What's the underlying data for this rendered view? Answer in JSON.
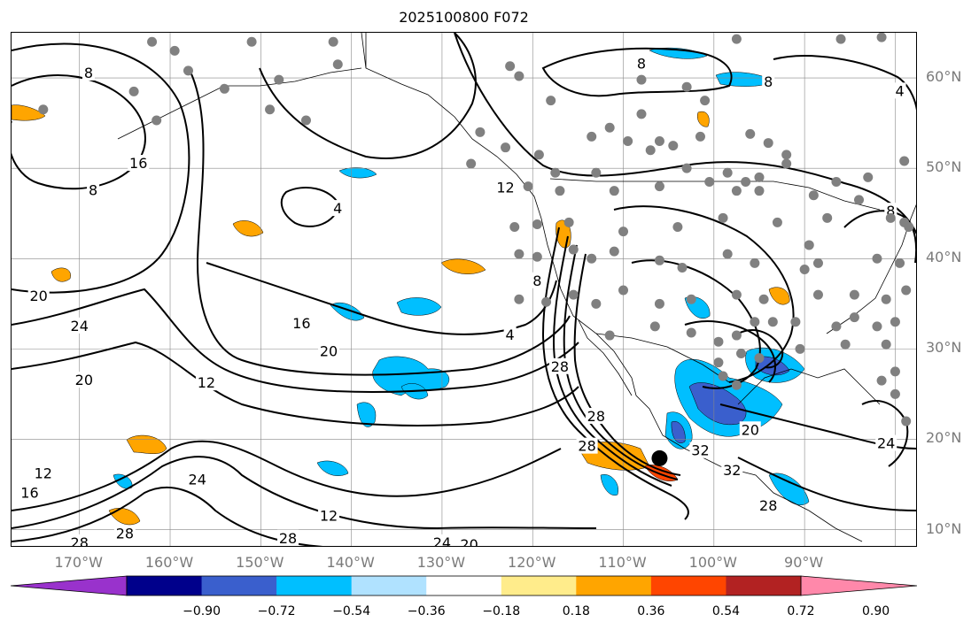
{
  "title": "2025100800 F072",
  "lat_labels": [
    {
      "text": "60°N",
      "lat": 60
    },
    {
      "text": "50°N",
      "lat": 50
    },
    {
      "text": "40°N",
      "lat": 40
    },
    {
      "text": "30°N",
      "lat": 30
    },
    {
      "text": "20°N",
      "lat": 20
    },
    {
      "text": "10°N",
      "lat": 10
    }
  ],
  "lon_labels": [
    {
      "text": "170°W",
      "lon": -170
    },
    {
      "text": "160°W",
      "lon": -160
    },
    {
      "text": "150°W",
      "lon": -150
    },
    {
      "text": "140°W",
      "lon": -140
    },
    {
      "text": "130°W",
      "lon": -130
    },
    {
      "text": "120°W",
      "lon": -120
    },
    {
      "text": "110°W",
      "lon": -110
    },
    {
      "text": "100°W",
      "lon": -100
    },
    {
      "text": "90°W",
      "lon": -90
    }
  ],
  "map_extent": {
    "lon_min": -177.5,
    "lon_max": -77.5,
    "lat_min": 8,
    "lat_max": 65
  },
  "colorbar": {
    "colors": [
      "#9932cc",
      "#00008b",
      "#3a5fcd",
      "#00bfff",
      "#b0e2ff",
      "#ffffff",
      "#ffec8b",
      "#ffa500",
      "#ff4500",
      "#b22222",
      "#ff88aa"
    ],
    "ticks": [
      "−0.90",
      "−0.72",
      "−0.54",
      "−0.36",
      "−0.18",
      "0.18",
      "0.36",
      "0.54",
      "0.72",
      "0.90"
    ],
    "extend": "both"
  },
  "contour_labels": [
    {
      "text": "8",
      "lon": -169,
      "lat": 60.5
    },
    {
      "text": "16",
      "lon": -163.5,
      "lat": 50.5
    },
    {
      "text": "8",
      "lon": -168.5,
      "lat": 47.5
    },
    {
      "text": "4",
      "lon": -141.5,
      "lat": 45.5
    },
    {
      "text": "20",
      "lon": -174.5,
      "lat": 35.8
    },
    {
      "text": "24",
      "lon": -170,
      "lat": 32.5
    },
    {
      "text": "20",
      "lon": -169.5,
      "lat": 26.5
    },
    {
      "text": "16",
      "lon": -145.5,
      "lat": 32.8
    },
    {
      "text": "20",
      "lon": -142.5,
      "lat": 29.7
    },
    {
      "text": "12",
      "lon": -156,
      "lat": 26.2
    },
    {
      "text": "12",
      "lon": -123,
      "lat": 47.8
    },
    {
      "text": "4",
      "lon": -122.5,
      "lat": 31.5
    },
    {
      "text": "8",
      "lon": -119.5,
      "lat": 37.5
    },
    {
      "text": "28",
      "lon": -117,
      "lat": 28
    },
    {
      "text": "28",
      "lon": -113,
      "lat": 22.5
    },
    {
      "text": "28",
      "lon": -114,
      "lat": 19.2
    },
    {
      "text": "8",
      "lon": -108,
      "lat": 61.5
    },
    {
      "text": "8",
      "lon": -94,
      "lat": 59.5
    },
    {
      "text": "4",
      "lon": -79.5,
      "lat": 58.5
    },
    {
      "text": "8",
      "lon": -80.5,
      "lat": 45.2
    },
    {
      "text": "20",
      "lon": -96,
      "lat": 21
    },
    {
      "text": "32",
      "lon": -101.5,
      "lat": 18.7
    },
    {
      "text": "32",
      "lon": -98,
      "lat": 16.5
    },
    {
      "text": "28",
      "lon": -94,
      "lat": 12.6
    },
    {
      "text": "24",
      "lon": -81,
      "lat": 19.5
    },
    {
      "text": "24",
      "lon": -157,
      "lat": 15.5
    },
    {
      "text": "12",
      "lon": -142.5,
      "lat": 11.5
    },
    {
      "text": "28",
      "lon": -165,
      "lat": 9.5
    },
    {
      "text": "28",
      "lon": -147,
      "lat": 9
    },
    {
      "text": "28",
      "lon": -170,
      "lat": 8.5
    },
    {
      "text": "16",
      "lon": -175.5,
      "lat": 14
    },
    {
      "text": "12",
      "lon": -174,
      "lat": 16.2
    },
    {
      "text": "24",
      "lon": -130,
      "lat": 8.5
    },
    {
      "text": "20",
      "lon": -127,
      "lat": 8.3
    }
  ],
  "stations": [
    [
      -162,
      64
    ],
    [
      -159.5,
      63
    ],
    [
      -151,
      64
    ],
    [
      -142,
      64
    ],
    [
      -158,
      60.8
    ],
    [
      -154,
      58.8
    ],
    [
      -148,
      59.8
    ],
    [
      -141.5,
      61.5
    ],
    [
      -164,
      58.5
    ],
    [
      -174,
      56.5
    ],
    [
      -161.5,
      55.3
    ],
    [
      -149,
      56.5
    ],
    [
      -145,
      55.3
    ],
    [
      -125.8,
      54
    ],
    [
      -123,
      52.3
    ],
    [
      -122.5,
      61.3
    ],
    [
      -121.5,
      60.2
    ],
    [
      -108,
      59.8
    ],
    [
      -103,
      59
    ],
    [
      -97.5,
      64.3
    ],
    [
      -86,
      64.3
    ],
    [
      -81.5,
      64.5
    ],
    [
      -113.5,
      53.5
    ],
    [
      -111.5,
      54.5
    ],
    [
      -109.5,
      53
    ],
    [
      -104.5,
      52.5
    ],
    [
      -101.5,
      53.5
    ],
    [
      -96,
      53.8
    ],
    [
      -94,
      52.8
    ],
    [
      -92,
      51.5
    ],
    [
      -119.3,
      51.5
    ],
    [
      -117.5,
      49.5
    ],
    [
      -113,
      49.5
    ],
    [
      -107,
      52
    ],
    [
      -106,
      53
    ],
    [
      -103,
      50
    ],
    [
      -98.5,
      49.5
    ],
    [
      -96.5,
      48.5
    ],
    [
      -95,
      49
    ],
    [
      -92,
      50.5
    ],
    [
      -86.5,
      48.5
    ],
    [
      -83,
      49
    ],
    [
      -79,
      50.8
    ],
    [
      -126.8,
      50.5
    ],
    [
      -120.5,
      48
    ],
    [
      -117,
      47.5
    ],
    [
      -111,
      47.5
    ],
    [
      -106,
      48
    ],
    [
      -100.5,
      48.5
    ],
    [
      -97.5,
      47.5
    ],
    [
      -95,
      47.5
    ],
    [
      -89,
      47
    ],
    [
      -84,
      46.5
    ],
    [
      -87.5,
      44.5
    ],
    [
      -122,
      43.5
    ],
    [
      -119.5,
      43.8
    ],
    [
      -116,
      44
    ],
    [
      -110,
      43
    ],
    [
      -104,
      43.5
    ],
    [
      -99,
      44.5
    ],
    [
      -93,
      44
    ],
    [
      -89.5,
      41.5
    ],
    [
      -80.5,
      44.5
    ],
    [
      -78.5,
      43.5
    ],
    [
      -121.5,
      40.5
    ],
    [
      -119.5,
      40.2
    ],
    [
      -115.5,
      41
    ],
    [
      -113.5,
      40
    ],
    [
      -111,
      40.8
    ],
    [
      -106,
      39.8
    ],
    [
      -103.5,
      39
    ],
    [
      -98.5,
      40.5
    ],
    [
      -95.5,
      39.5
    ],
    [
      -90,
      38.8
    ],
    [
      -88.5,
      39.5
    ],
    [
      -82,
      40
    ],
    [
      -79.5,
      39.5
    ],
    [
      -121.5,
      35.5
    ],
    [
      -118.5,
      35.2
    ],
    [
      -115.5,
      36
    ],
    [
      -113,
      35
    ],
    [
      -110,
      36.5
    ],
    [
      -106,
      35
    ],
    [
      -102.5,
      35.5
    ],
    [
      -97.5,
      36
    ],
    [
      -94.5,
      35.5
    ],
    [
      -88.5,
      36
    ],
    [
      -84.5,
      36
    ],
    [
      -81,
      35.5
    ],
    [
      -78.8,
      36.5
    ],
    [
      -111.5,
      31.5
    ],
    [
      -106.5,
      32.5
    ],
    [
      -102.5,
      31.8
    ],
    [
      -99.5,
      30.8
    ],
    [
      -97.5,
      31.5
    ],
    [
      -95.5,
      33
    ],
    [
      -93.5,
      33
    ],
    [
      -91,
      33
    ],
    [
      -86.5,
      32.5
    ],
    [
      -84.5,
      33.5
    ],
    [
      -82,
      32.5
    ],
    [
      -80,
      33
    ],
    [
      -97,
      29.5
    ],
    [
      -95,
      29
    ],
    [
      -90.5,
      30
    ],
    [
      -85.5,
      30.5
    ],
    [
      -81,
      30.5
    ],
    [
      -99,
      27
    ],
    [
      -97.5,
      26
    ],
    [
      -99.5,
      28.5
    ],
    [
      -81.5,
      26.5
    ],
    [
      -80,
      27.5
    ],
    [
      -80,
      25
    ],
    [
      -78.8,
      22
    ],
    [
      -118,
      57.5
    ],
    [
      -108,
      56
    ],
    [
      -101,
      57.5
    ],
    [
      -79,
      44
    ]
  ],
  "big_marker": {
    "lon": -106,
    "lat": 17.9
  }
}
